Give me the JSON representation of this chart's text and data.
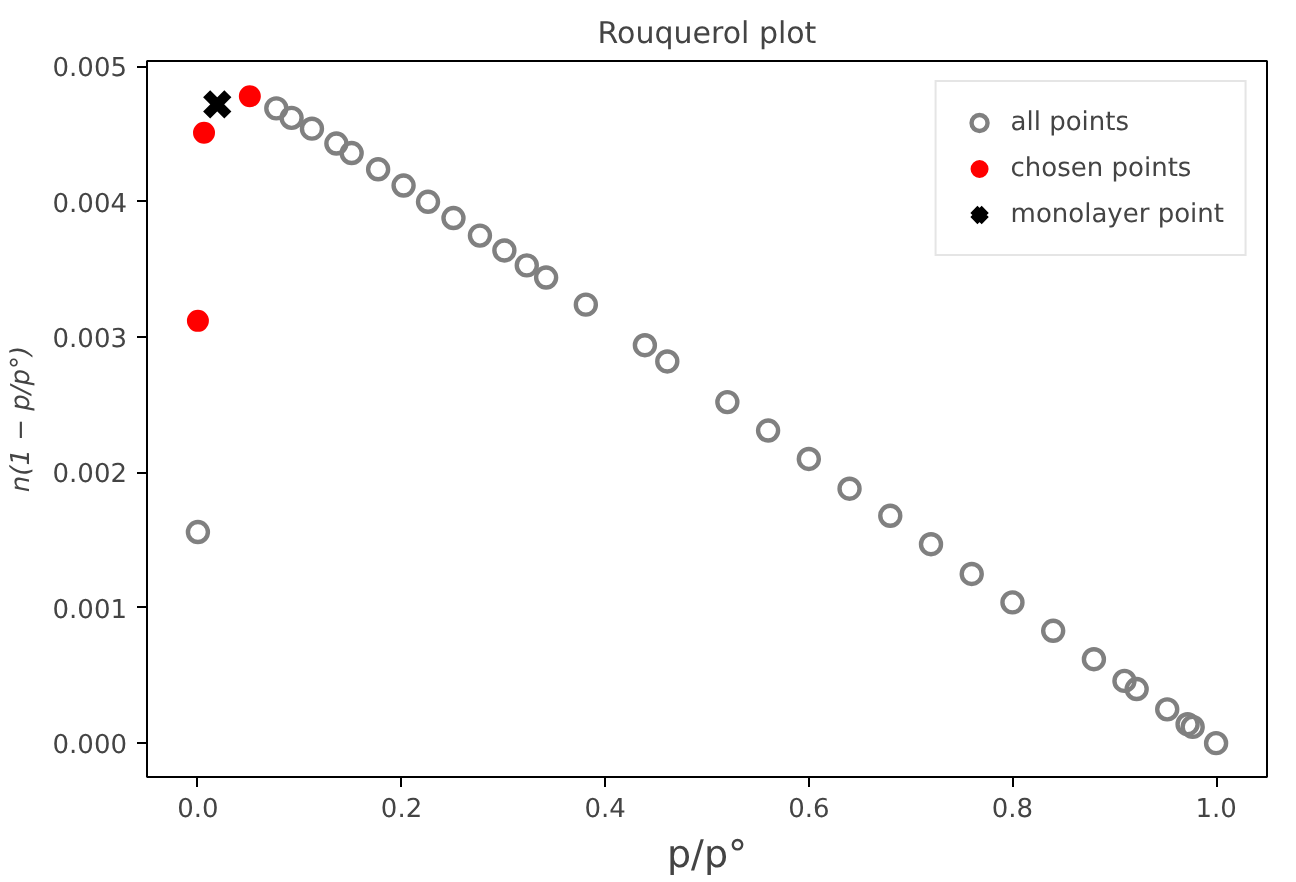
{
  "chart_data": {
    "type": "scatter",
    "title": "Rouquerol plot",
    "xlabel": "p/p°",
    "ylabel": "n(1 − p/p°)",
    "xlim": [
      -0.05,
      1.05
    ],
    "ylim": [
      -0.00025,
      0.00504
    ],
    "xticks": [
      {
        "value": 0,
        "label": "0.0"
      },
      {
        "value": 0.2,
        "label": "0.2"
      },
      {
        "value": 0.4,
        "label": "0.4"
      },
      {
        "value": 0.6,
        "label": "0.6"
      },
      {
        "value": 0.8,
        "label": "0.8"
      },
      {
        "value": 1,
        "label": "1.0"
      }
    ],
    "yticks": [
      {
        "value": 0,
        "label": "0.000"
      },
      {
        "value": 0.001,
        "label": "0.001"
      },
      {
        "value": 0.002,
        "label": "0.002"
      },
      {
        "value": 0.003,
        "label": "0.003"
      },
      {
        "value": 0.004,
        "label": "0.004"
      },
      {
        "value": 0.005,
        "label": "0.005"
      }
    ],
    "grid": false,
    "legend": "top right",
    "series": [
      {
        "name": "all points",
        "color": "#808080",
        "marker": "circle",
        "x": [
          0.0,
          0.077,
          0.092,
          0.112,
          0.136,
          0.151,
          0.177,
          0.202,
          0.226,
          0.251,
          0.277,
          0.301,
          0.323,
          0.342,
          0.381,
          0.439,
          0.461,
          0.52,
          0.56,
          0.6,
          0.64,
          0.68,
          0.72,
          0.76,
          0.8,
          0.84,
          0.88,
          0.91,
          0.922,
          0.952,
          0.972,
          0.977,
          1.0
        ],
        "values": [
          0.00156,
          0.00469,
          0.00462,
          0.00454,
          0.00443,
          0.00436,
          0.00424,
          0.00412,
          0.004,
          0.00388,
          0.00375,
          0.00364,
          0.00353,
          0.00344,
          0.00324,
          0.00294,
          0.00282,
          0.00252,
          0.00231,
          0.0021,
          0.00188,
          0.00168,
          0.00147,
          0.00125,
          0.00104,
          0.00083,
          0.00062,
          0.00046,
          0.0004,
          0.00025,
          0.00014,
          0.00012,
          0.0
        ]
      },
      {
        "name": "chosen points",
        "color": "#ff0000",
        "marker": "circle",
        "x": [
          0.0,
          0.006,
          0.051
        ],
        "values": [
          0.00312,
          0.00451,
          0.00478
        ]
      },
      {
        "name": "monolayer point",
        "color": "#000000",
        "marker": "cross",
        "x": [
          0.019
        ],
        "values": [
          0.00472
        ]
      }
    ]
  }
}
